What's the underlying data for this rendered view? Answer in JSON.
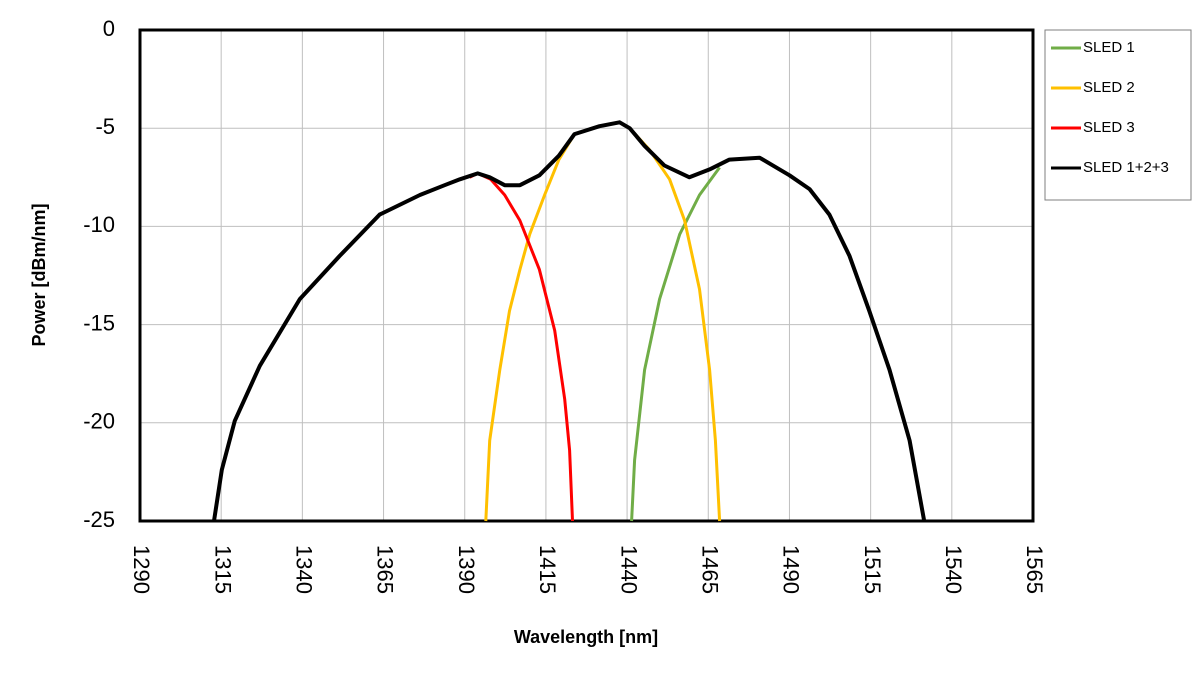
{
  "chart_data": {
    "type": "line",
    "xlabel": "Wavelength [nm]",
    "ylabel": "Power [dBm/nm]",
    "xlim": [
      1290,
      1565
    ],
    "xticks": [
      1290,
      1315,
      1340,
      1365,
      1390,
      1415,
      1440,
      1465,
      1490,
      1515,
      1540,
      1565
    ],
    "ylim": [
      -25,
      0
    ],
    "yticks": [
      0,
      -5,
      -10,
      -15,
      -20,
      -25
    ],
    "grid": true,
    "legend": "right",
    "series": [
      {
        "name": "SLED 1",
        "color": "#70ad47",
        "x": [
          1441.4,
          1442.3,
          1445.4,
          1450,
          1456.2,
          1462.3,
          1468.5
        ],
        "values": [
          -25,
          -21.9,
          -17.3,
          -13.7,
          -10.4,
          -8.4,
          -7.0
        ]
      },
      {
        "name": "SLED 2",
        "color": "#ffc000",
        "x": [
          1396.5,
          1397.7,
          1400.8,
          1403.8,
          1407,
          1410,
          1414.6,
          1419,
          1423.8,
          1431.5,
          1437.7,
          1440.8,
          1446.9,
          1453.1,
          1457.7,
          1462.3,
          1465.4,
          1467.2,
          1468.5
        ],
        "values": [
          -25,
          -20.9,
          -17.3,
          -14.3,
          -12.2,
          -10.4,
          -8.4,
          -6.6,
          -5.3,
          -4.9,
          -4.7,
          -5.0,
          -6.1,
          -7.6,
          -9.7,
          -13.2,
          -17.3,
          -20.9,
          -25
        ]
      },
      {
        "name": "SLED 3",
        "color": "#ff0000",
        "x": [
          1391.5,
          1394,
          1398,
          1402.3,
          1407,
          1413,
          1417.7,
          1420.8,
          1422.3,
          1423.2
        ],
        "values": [
          -7.5,
          -7.3,
          -7.6,
          -8.4,
          -9.7,
          -12.2,
          -15.3,
          -18.8,
          -21.4,
          -25
        ]
      },
      {
        "name": "SLED 1+2+3",
        "color": "#000000",
        "x": [
          1312.8,
          1315.2,
          1319.2,
          1326.9,
          1339.2,
          1351.5,
          1363.8,
          1376.2,
          1383.8,
          1388.5,
          1394,
          1397.7,
          1402.3,
          1407,
          1413,
          1419,
          1423.8,
          1431.5,
          1437.7,
          1440.8,
          1445.4,
          1451.5,
          1459.2,
          1465.4,
          1471.5,
          1480.8,
          1490,
          1496.2,
          1502.3,
          1508.5,
          1514.6,
          1520.8,
          1527,
          1531.5
        ],
        "values": [
          -25,
          -22.4,
          -19.9,
          -17.1,
          -13.7,
          -11.5,
          -9.4,
          -8.4,
          -7.9,
          -7.6,
          -7.3,
          -7.5,
          -7.9,
          -7.9,
          -7.4,
          -6.4,
          -5.3,
          -4.9,
          -4.7,
          -5.0,
          -5.9,
          -6.9,
          -7.5,
          -7.1,
          -6.6,
          -6.5,
          -7.4,
          -8.1,
          -9.4,
          -11.5,
          -14.3,
          -17.3,
          -20.9,
          -25
        ]
      }
    ]
  }
}
